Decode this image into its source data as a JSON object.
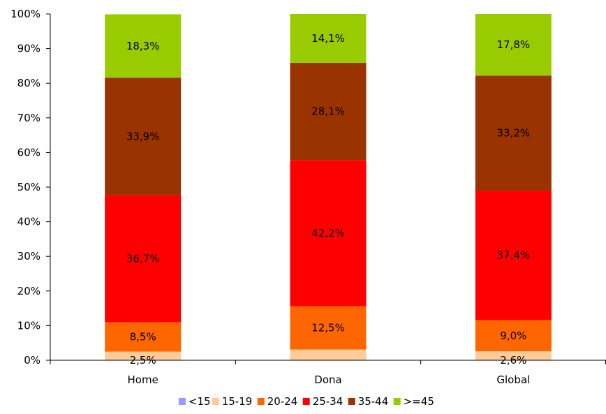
{
  "chart_data": {
    "type": "bar",
    "stacked": true,
    "percent": true,
    "title": "",
    "xlabel": "",
    "ylabel": "",
    "ylim": [
      0,
      100
    ],
    "yticks": [
      "0%",
      "10%",
      "20%",
      "30%",
      "40%",
      "50%",
      "60%",
      "70%",
      "80%",
      "90%",
      "100%"
    ],
    "categories": [
      "Home",
      "Dona",
      "Global"
    ],
    "series": [
      {
        "name": "<15",
        "color": "#9999ff",
        "values": [
          0.0,
          0.0,
          0.0
        ],
        "labels": [
          "",
          "",
          ""
        ]
      },
      {
        "name": "15-19",
        "color": "#ffcc99",
        "values": [
          2.5,
          3.1,
          2.6
        ],
        "labels": [
          "2,5%",
          "",
          "2,6%"
        ]
      },
      {
        "name": "20-24",
        "color": "#ff6600",
        "values": [
          8.5,
          12.5,
          9.0
        ],
        "labels": [
          "8,5%",
          "12,5%",
          "9,0%"
        ]
      },
      {
        "name": "25-34",
        "color": "#ff0000",
        "values": [
          36.7,
          42.2,
          37.4
        ],
        "labels": [
          "36,7%",
          "42,2%",
          "37,4%"
        ]
      },
      {
        "name": "35-44",
        "color": "#993300",
        "values": [
          33.9,
          28.1,
          33.2
        ],
        "labels": [
          "33,9%",
          "28,1%",
          "33,2%"
        ]
      },
      {
        "name": ">=45",
        "color": "#99cc00",
        "values": [
          18.3,
          14.1,
          17.8
        ],
        "labels": [
          "18,3%",
          "14,1%",
          "17,8%"
        ]
      }
    ],
    "legend_position": "bottom",
    "grid": false
  }
}
